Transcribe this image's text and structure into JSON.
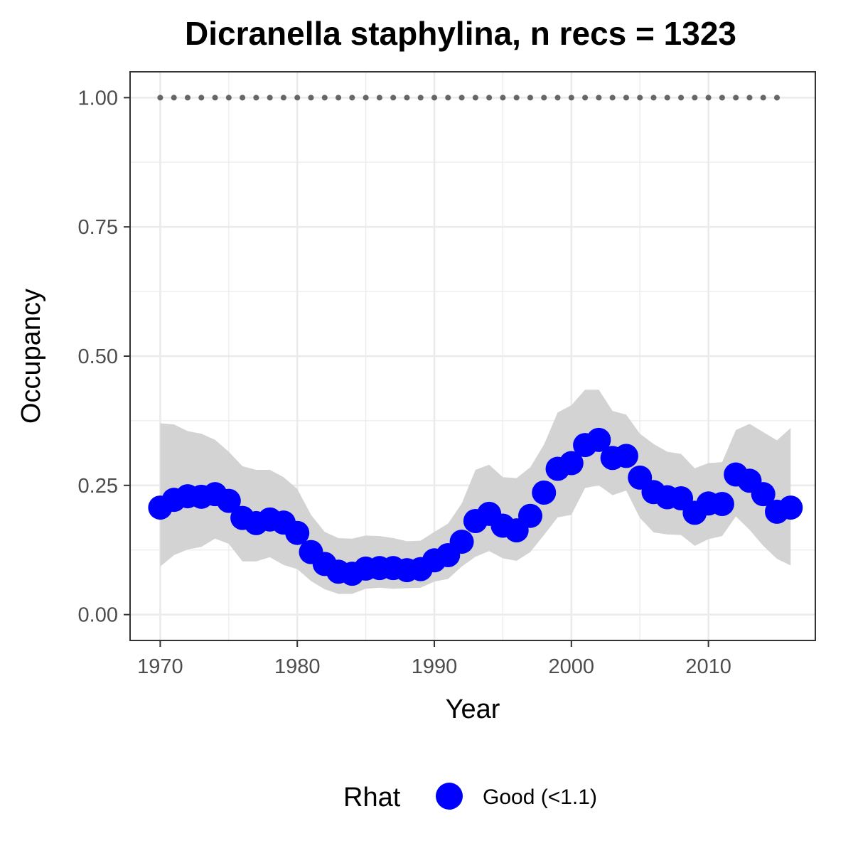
{
  "chart_data": {
    "type": "line",
    "title": "Dicranella staphylina, n recs = 1323",
    "xlabel": "Year",
    "ylabel": "Occupancy",
    "xlim": [
      1967.8,
      2017.8
    ],
    "ylim": [
      -0.05,
      1.05
    ],
    "xticks": [
      1970,
      1980,
      1990,
      2000,
      2010
    ],
    "xtick_labels": [
      "1970",
      "1980",
      "1990",
      "2000",
      "2010"
    ],
    "yticks": [
      0,
      0.25,
      0.5,
      0.75,
      1
    ],
    "ytick_labels": [
      "0.00",
      "0.25",
      "0.50",
      "0.75",
      "1.00"
    ],
    "grid": true,
    "legend": {
      "position": "bottom",
      "title": "Rhat",
      "entries": [
        "Good (<1.1)"
      ]
    },
    "colors": {
      "points": "#0000ff",
      "ribbon": "#d3d3d3",
      "reference": "#666666",
      "grid": "#ebebeb",
      "border": "#333333"
    },
    "series": [
      {
        "x": [
          1970,
          1971,
          1972,
          1973,
          1974,
          1975,
          1976,
          1977,
          1978,
          1979,
          1980,
          1981,
          1982,
          1983,
          1984,
          1985,
          1986,
          1987,
          1988,
          1989,
          1990,
          1991,
          1992,
          1993,
          1994,
          1995,
          1996,
          1997,
          1998,
          1999,
          2000,
          2001,
          2002,
          2003,
          2004,
          2005,
          2006,
          2007,
          2008,
          2009,
          2010,
          2011,
          2012,
          2013,
          2014,
          2015,
          2016
        ],
        "y": [
          0.207,
          0.222,
          0.229,
          0.228,
          0.233,
          0.22,
          0.187,
          0.177,
          0.184,
          0.178,
          0.158,
          0.121,
          0.098,
          0.083,
          0.079,
          0.089,
          0.09,
          0.09,
          0.086,
          0.088,
          0.105,
          0.115,
          0.141,
          0.181,
          0.195,
          0.172,
          0.163,
          0.191,
          0.236,
          0.282,
          0.293,
          0.328,
          0.338,
          0.303,
          0.307,
          0.265,
          0.237,
          0.227,
          0.225,
          0.197,
          0.215,
          0.214,
          0.271,
          0.259,
          0.233,
          0.199,
          0.207
        ],
        "lower": [
          0.093,
          0.115,
          0.126,
          0.131,
          0.147,
          0.137,
          0.103,
          0.103,
          0.111,
          0.096,
          0.088,
          0.065,
          0.049,
          0.04,
          0.04,
          0.05,
          0.052,
          0.05,
          0.051,
          0.052,
          0.064,
          0.069,
          0.093,
          0.112,
          0.123,
          0.109,
          0.104,
          0.121,
          0.154,
          0.188,
          0.193,
          0.245,
          0.25,
          0.231,
          0.24,
          0.187,
          0.159,
          0.155,
          0.154,
          0.133,
          0.146,
          0.152,
          0.19,
          0.164,
          0.133,
          0.108,
          0.095
        ]
      }
    ],
    "upper": [
      0.37,
      0.368,
      0.355,
      0.35,
      0.338,
      0.315,
      0.287,
      0.28,
      0.28,
      0.266,
      0.243,
      0.193,
      0.16,
      0.148,
      0.147,
      0.153,
      0.152,
      0.148,
      0.142,
      0.143,
      0.16,
      0.176,
      0.215,
      0.28,
      0.29,
      0.266,
      0.264,
      0.285,
      0.329,
      0.391,
      0.405,
      0.435,
      0.435,
      0.394,
      0.387,
      0.35,
      0.33,
      0.315,
      0.311,
      0.283,
      0.293,
      0.295,
      0.357,
      0.369,
      0.353,
      0.337,
      0.361
    ],
    "reference_line": {
      "y": 1,
      "x_start": 1970,
      "x_end": 2015,
      "step": 1
    }
  }
}
